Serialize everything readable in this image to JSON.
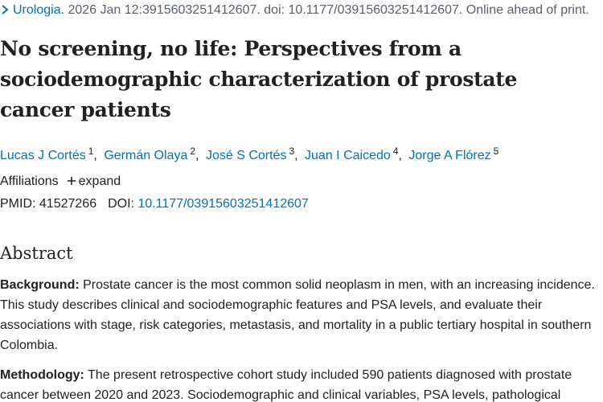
{
  "citation": {
    "journal": "Urologia.",
    "details": "2026 Jan 12:3915603251412607. doi: 10.1177/03915603251412607. Online ahead of print."
  },
  "title": "No screening, no life: Perspectives from a sociodemographic characterization of prostate cancer patients",
  "authors": [
    {
      "name": "Lucas J Cortés",
      "affiliation": "1"
    },
    {
      "name": "Germán Olaya",
      "affiliation": "2"
    },
    {
      "name": "José S Cortés",
      "affiliation": "3"
    },
    {
      "name": "Juan I Caicedo",
      "affiliation": "4"
    },
    {
      "name": "Jorge A Flórez",
      "affiliation": "5"
    }
  ],
  "affiliations": {
    "label": "Affiliations",
    "toggle": "expand"
  },
  "identifiers": {
    "pmid_label": "PMID:",
    "pmid": "41527266",
    "doi_label": "DOI:",
    "doi": "10.1177/03915603251412607"
  },
  "abstract": {
    "heading": "Abstract",
    "sections": [
      {
        "label": "Background:",
        "text": "Prostate cancer is the most common solid neoplasm in men, with an increasing incidence. This study describes clinical and sociodemographic features and PSA levels, and evaluate their associations with stage, risk categories, metastasis, and mortality in a public tertiary hospital in southern Colombia."
      },
      {
        "label": "Methodology:",
        "text": "The present retrospective cohort study included 590 patients diagnosed with prostate cancer between 2020 and 2023. Sociodemographic and clinical variables, PSA levels, pathological"
      }
    ]
  }
}
